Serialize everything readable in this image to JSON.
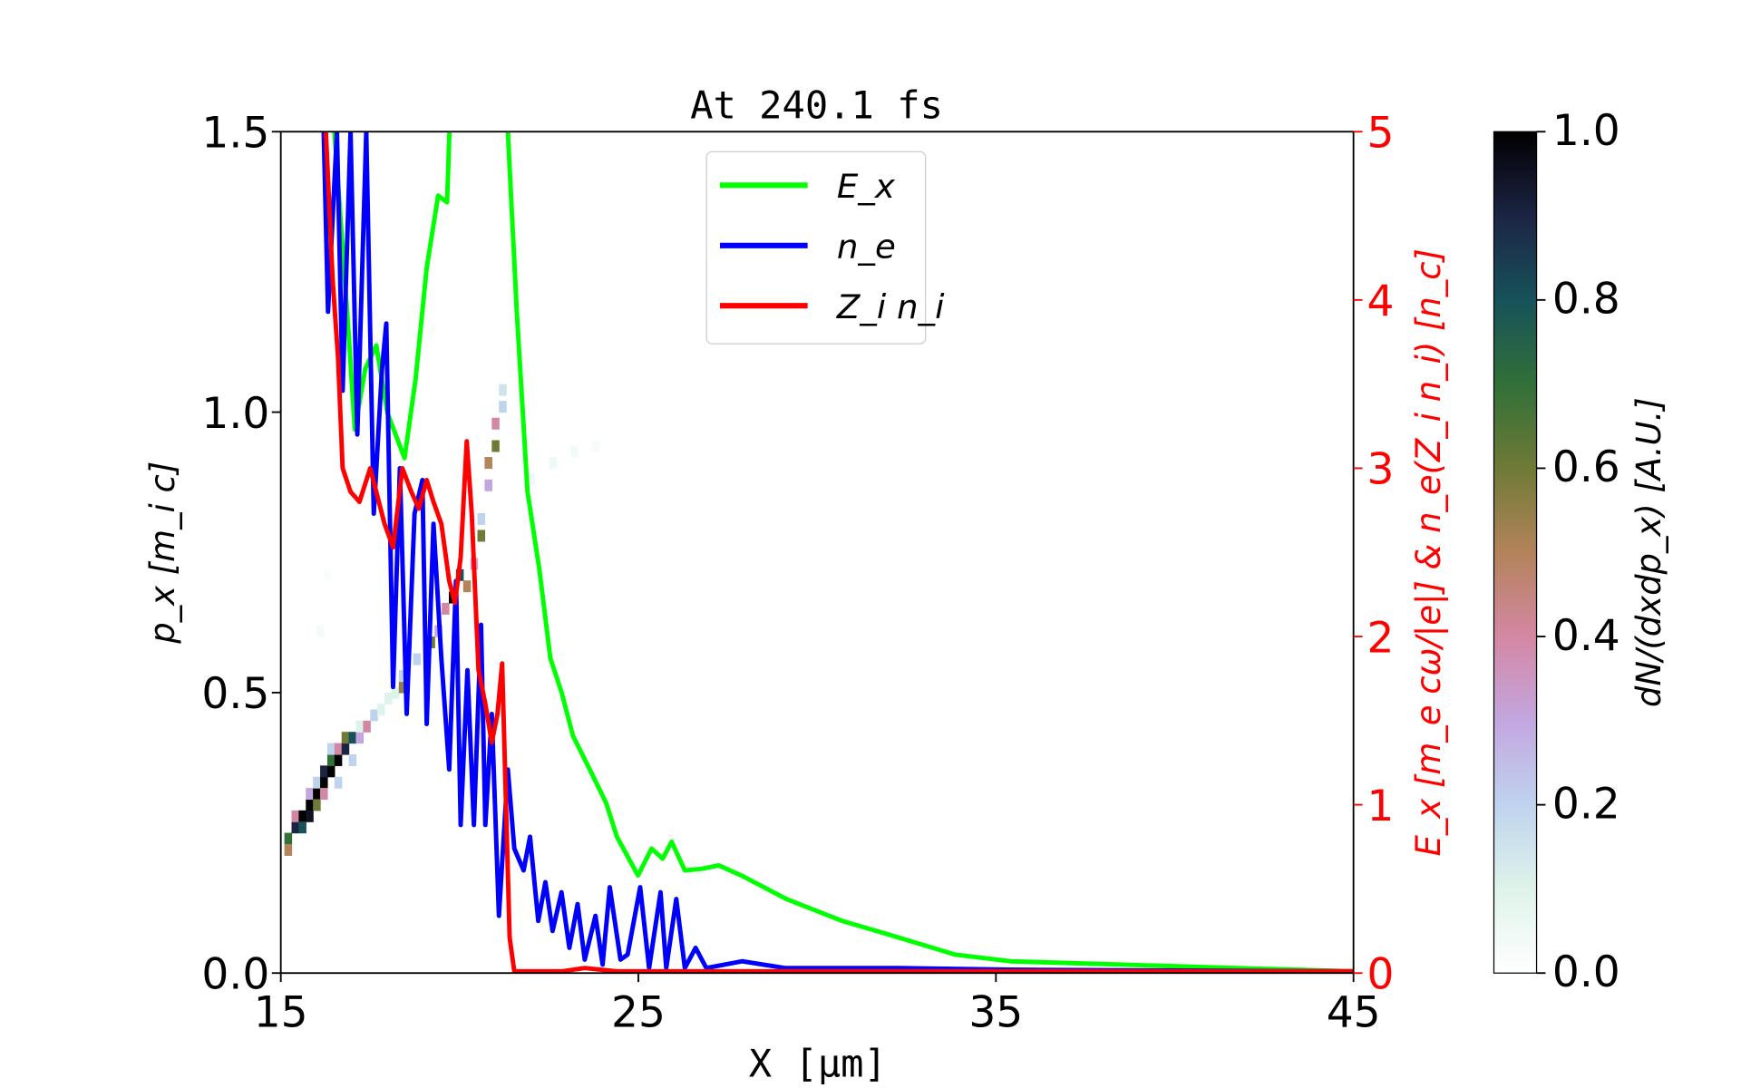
{
  "chart_data": {
    "type": "line",
    "title": "At 240.1 fs",
    "xlabel": "X [μm]",
    "ylabel_left": "p_x [m_i c]",
    "ylabel_right": "E_x [m_e cω/|e|] & n_e(Z_i n_i) [n_c]",
    "colorbar_label": "dN/(dxdp_x) [A.U.]",
    "xlim": [
      15,
      45
    ],
    "ylim_left": [
      0,
      1.5
    ],
    "ylim_right": [
      0,
      5
    ],
    "clim": [
      0,
      1
    ],
    "x_ticks": [
      "15",
      "25",
      "35",
      "45"
    ],
    "y_ticks_left": [
      "0.0",
      "0.5",
      "1.0",
      "1.5"
    ],
    "y_ticks_right": [
      "0",
      "1",
      "2",
      "3",
      "4",
      "5"
    ],
    "colorbar_ticks": [
      "0.0",
      "0.2",
      "0.4",
      "0.6",
      "0.8",
      "1.0"
    ],
    "right_axis_color": "#ff0000",
    "legend_placement": "upper-center",
    "grid": false,
    "series": [
      {
        "name": "E_x",
        "color": "#00ff00",
        "points": [
          [
            16.5,
            5
          ],
          [
            16.9,
            3.79
          ],
          [
            17.07,
            3.23
          ],
          [
            17.36,
            3.59
          ],
          [
            17.67,
            3.73
          ],
          [
            17.98,
            3.33
          ],
          [
            18.46,
            3.06
          ],
          [
            18.77,
            3.53
          ],
          [
            19.08,
            4.19
          ],
          [
            19.4,
            4.62
          ],
          [
            19.65,
            4.58
          ],
          [
            19.78,
            5.4
          ],
          [
            21.35,
            5.4
          ],
          [
            21.35,
            5
          ],
          [
            21.6,
            3.93
          ],
          [
            21.9,
            2.86
          ],
          [
            22.23,
            2.4
          ],
          [
            22.54,
            1.87
          ],
          [
            22.85,
            1.67
          ],
          [
            23.17,
            1.41
          ],
          [
            23.64,
            1.21
          ],
          [
            24.1,
            1.01
          ],
          [
            24.4,
            0.81
          ],
          [
            24.99,
            0.58
          ],
          [
            25.37,
            0.74
          ],
          [
            25.68,
            0.68
          ],
          [
            25.93,
            0.78
          ],
          [
            26.3,
            0.61
          ],
          [
            26.78,
            0.62
          ],
          [
            27.25,
            0.64
          ],
          [
            27.88,
            0.58
          ],
          [
            29.14,
            0.44
          ],
          [
            30.7,
            0.31
          ],
          [
            32.3,
            0.21
          ],
          [
            33.85,
            0.11
          ],
          [
            35.4,
            0.07
          ],
          [
            38.56,
            0.05
          ],
          [
            41.7,
            0.03
          ],
          [
            45,
            0.01
          ]
        ]
      },
      {
        "name": "n_e",
        "color": "#0000ff",
        "points": [
          [
            16.2,
            5
          ],
          [
            16.32,
            3.93
          ],
          [
            16.57,
            5
          ],
          [
            16.73,
            3.46
          ],
          [
            16.95,
            5
          ],
          [
            17.14,
            3.2
          ],
          [
            17.39,
            5
          ],
          [
            17.6,
            2.73
          ],
          [
            17.83,
            3.59
          ],
          [
            17.95,
            3.86
          ],
          [
            18.14,
            1.7
          ],
          [
            18.33,
            3.0
          ],
          [
            18.52,
            1.54
          ],
          [
            18.74,
            2.73
          ],
          [
            18.96,
            2.93
          ],
          [
            19.08,
            1.48
          ],
          [
            19.27,
            2.67
          ],
          [
            19.49,
            1.87
          ],
          [
            19.71,
            1.21
          ],
          [
            19.9,
            2.33
          ],
          [
            20.03,
            0.88
          ],
          [
            20.22,
            1.8
          ],
          [
            20.4,
            0.88
          ],
          [
            20.6,
            2.07
          ],
          [
            20.72,
            0.88
          ],
          [
            20.9,
            1.54
          ],
          [
            21.1,
            0.34
          ],
          [
            21.35,
            1.21
          ],
          [
            21.53,
            0.74
          ],
          [
            21.79,
            0.61
          ],
          [
            21.97,
            0.81
          ],
          [
            22.2,
            0.31
          ],
          [
            22.4,
            0.54
          ],
          [
            22.6,
            0.25
          ],
          [
            22.85,
            0.48
          ],
          [
            23.07,
            0.15
          ],
          [
            23.3,
            0.41
          ],
          [
            23.5,
            0.08
          ],
          [
            23.8,
            0.34
          ],
          [
            24.0,
            0.05
          ],
          [
            24.2,
            0.51
          ],
          [
            24.5,
            0.08
          ],
          [
            24.7,
            0.11
          ],
          [
            25.05,
            0.51
          ],
          [
            25.3,
            0.03
          ],
          [
            25.62,
            0.48
          ],
          [
            25.78,
            0.03
          ],
          [
            26.06,
            0.44
          ],
          [
            26.3,
            0.03
          ],
          [
            26.6,
            0.15
          ],
          [
            26.9,
            0.03
          ],
          [
            27.9,
            0.07
          ],
          [
            29.1,
            0.03
          ],
          [
            32.3,
            0.03
          ],
          [
            35.4,
            0.02
          ],
          [
            45,
            0.01
          ]
        ]
      },
      {
        "name": "Z_i n_i",
        "color": "#ff0000",
        "points": [
          [
            16.26,
            5
          ],
          [
            16.45,
            4.12
          ],
          [
            16.6,
            3.66
          ],
          [
            16.73,
            3.0
          ],
          [
            16.95,
            2.86
          ],
          [
            17.2,
            2.8
          ],
          [
            17.5,
            3.0
          ],
          [
            17.67,
            2.86
          ],
          [
            17.9,
            2.67
          ],
          [
            18.14,
            2.53
          ],
          [
            18.4,
            3.0
          ],
          [
            18.65,
            2.86
          ],
          [
            18.86,
            2.76
          ],
          [
            19.08,
            2.93
          ],
          [
            19.27,
            2.8
          ],
          [
            19.49,
            2.67
          ],
          [
            19.71,
            2.33
          ],
          [
            19.87,
            2.2
          ],
          [
            20.03,
            2.47
          ],
          [
            20.2,
            3.16
          ],
          [
            20.34,
            2.73
          ],
          [
            20.53,
            1.8
          ],
          [
            20.72,
            1.6
          ],
          [
            20.9,
            1.37
          ],
          [
            21.06,
            1.54
          ],
          [
            21.19,
            1.84
          ],
          [
            21.28,
            1.14
          ],
          [
            21.4,
            0.21
          ],
          [
            21.53,
            0.01
          ],
          [
            22.85,
            0.01
          ],
          [
            23.5,
            0.03
          ],
          [
            24.4,
            0.01
          ],
          [
            45,
            0.01
          ]
        ]
      }
    ],
    "heatmap": {
      "cells": [
        [
          15.1,
          0.23,
          0.7
        ],
        [
          15.1,
          0.21,
          0.5
        ],
        [
          15.3,
          0.25,
          0.9
        ],
        [
          15.3,
          0.27,
          0.4
        ],
        [
          15.5,
          0.27,
          1
        ],
        [
          15.5,
          0.25,
          0.8
        ],
        [
          15.7,
          0.29,
          1
        ],
        [
          15.7,
          0.27,
          0.95
        ],
        [
          15.7,
          0.31,
          0.3
        ],
        [
          15.9,
          0.31,
          1
        ],
        [
          15.9,
          0.29,
          0.6
        ],
        [
          15.9,
          0.33,
          0.2
        ],
        [
          16.1,
          0.33,
          1
        ],
        [
          16.1,
          0.35,
          0.9
        ],
        [
          16.1,
          0.31,
          0.4
        ],
        [
          16.3,
          0.35,
          1
        ],
        [
          16.3,
          0.37,
          0.7
        ],
        [
          16.3,
          0.39,
          0.2
        ],
        [
          16.5,
          0.37,
          1
        ],
        [
          16.5,
          0.39,
          0.4
        ],
        [
          16.5,
          0.33,
          0.2
        ],
        [
          16.7,
          0.39,
          0.9
        ],
        [
          16.7,
          0.41,
          0.6
        ],
        [
          16.9,
          0.41,
          0.8
        ],
        [
          16.9,
          0.37,
          0.2
        ],
        [
          17.1,
          0.41,
          0.3
        ],
        [
          17.1,
          0.43,
          0.1
        ],
        [
          17.3,
          0.43,
          0.4
        ],
        [
          17.5,
          0.45,
          0.2
        ],
        [
          17.7,
          0.46,
          0.1
        ],
        [
          17.9,
          0.48,
          0.1
        ],
        [
          18.1,
          0.49,
          0.1
        ],
        [
          18.3,
          0.5,
          0.55
        ],
        [
          18.3,
          0.52,
          0.2
        ],
        [
          18.7,
          0.55,
          0.2
        ],
        [
          19.1,
          0.58,
          0.6
        ],
        [
          19.3,
          0.6,
          0.3
        ],
        [
          19.5,
          0.64,
          0.4
        ],
        [
          19.7,
          0.66,
          1
        ],
        [
          19.9,
          0.7,
          0.8
        ],
        [
          20.1,
          0.68,
          0.5
        ],
        [
          20.3,
          0.72,
          0.3
        ],
        [
          20.5,
          0.77,
          0.6
        ],
        [
          20.5,
          0.8,
          0.2
        ],
        [
          20.7,
          0.86,
          0.3
        ],
        [
          20.7,
          0.9,
          0.5
        ],
        [
          20.9,
          0.93,
          0.6
        ],
        [
          20.9,
          0.97,
          0.4
        ],
        [
          21.1,
          1.0,
          0.2
        ],
        [
          21.1,
          1.03,
          0.15
        ],
        [
          21.9,
          0.87,
          0.05
        ],
        [
          22.5,
          0.9,
          0.05
        ],
        [
          23.1,
          0.92,
          0.04
        ],
        [
          23.7,
          0.93,
          0.03
        ],
        [
          16.0,
          0.6,
          0.03
        ],
        [
          16.2,
          0.7,
          0.02
        ]
      ]
    }
  }
}
